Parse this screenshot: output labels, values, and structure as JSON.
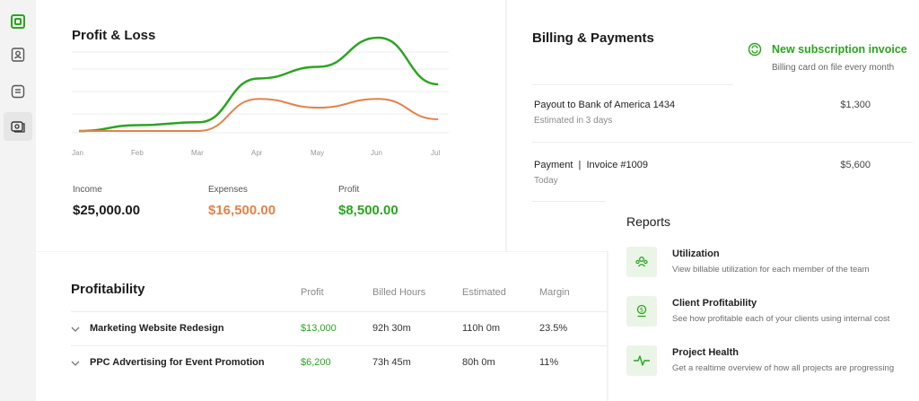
{
  "sidebar": {
    "icons": [
      "logo-icon",
      "contacts-icon",
      "document-icon",
      "billing-icon"
    ]
  },
  "profit_loss": {
    "title": "Profit & Loss",
    "months": [
      "Jan",
      "Feb",
      "Mar",
      "Apr",
      "May",
      "Jun",
      "Jul"
    ],
    "stats": [
      {
        "label": "Income",
        "value": "$25,000.00"
      },
      {
        "label": "Expenses",
        "value": "$16,500.00"
      },
      {
        "label": "Profit",
        "value": "$8,500.00"
      }
    ],
    "colors": {
      "income": "#2aa51f",
      "expenses": "#e2834a"
    }
  },
  "chart_data": {
    "type": "line",
    "x": [
      "Jan",
      "Feb",
      "Mar",
      "Apr",
      "May",
      "Jun",
      "Jul"
    ],
    "series": [
      {
        "values": [
          0,
          0.1,
          0.15,
          0.9,
          1.1,
          1.6,
          0.8
        ]
      },
      {
        "values": [
          0,
          0,
          0,
          0.55,
          0.4,
          0.55,
          0.2
        ]
      }
    ],
    "grid": true
  },
  "billing": {
    "title": "Billing & Payments",
    "notification": {
      "title": "New subscription invoice",
      "subtitle": "Billing card on file every month"
    },
    "rows": [
      {
        "title": "Payout to Bank of America 1434",
        "sub": "Estimated in 3 days",
        "amount": "$1,300"
      },
      {
        "title": "Payment  |  Invoice #1009",
        "sub": "Today",
        "amount": "$5,600"
      }
    ]
  },
  "profitability": {
    "title": "Profitability",
    "columns": [
      "Profit",
      "Billed Hours",
      "Estimated",
      "Margin"
    ],
    "rows": [
      {
        "name": "Marketing Website Redesign",
        "profit": "$13,000",
        "billed": "92h 30m",
        "estimated": "110h 0m",
        "margin": "23.5%"
      },
      {
        "name": "PPC Advertising for Event Promotion",
        "profit": "$6,200",
        "billed": "73h 45m",
        "estimated": "80h 0m",
        "margin": "11%"
      }
    ]
  },
  "reports": {
    "title": "Reports",
    "items": [
      {
        "title": "Utilization",
        "desc": "View billable utilization for each member of the team",
        "icon": "team-icon"
      },
      {
        "title": "Client Profitability",
        "desc": "See how profitable each of your clients using internal cost",
        "icon": "dollar-icon"
      },
      {
        "title": "Project Health",
        "desc": "Get a realtime overview of how all projects are progressing",
        "icon": "pulse-icon"
      }
    ]
  }
}
